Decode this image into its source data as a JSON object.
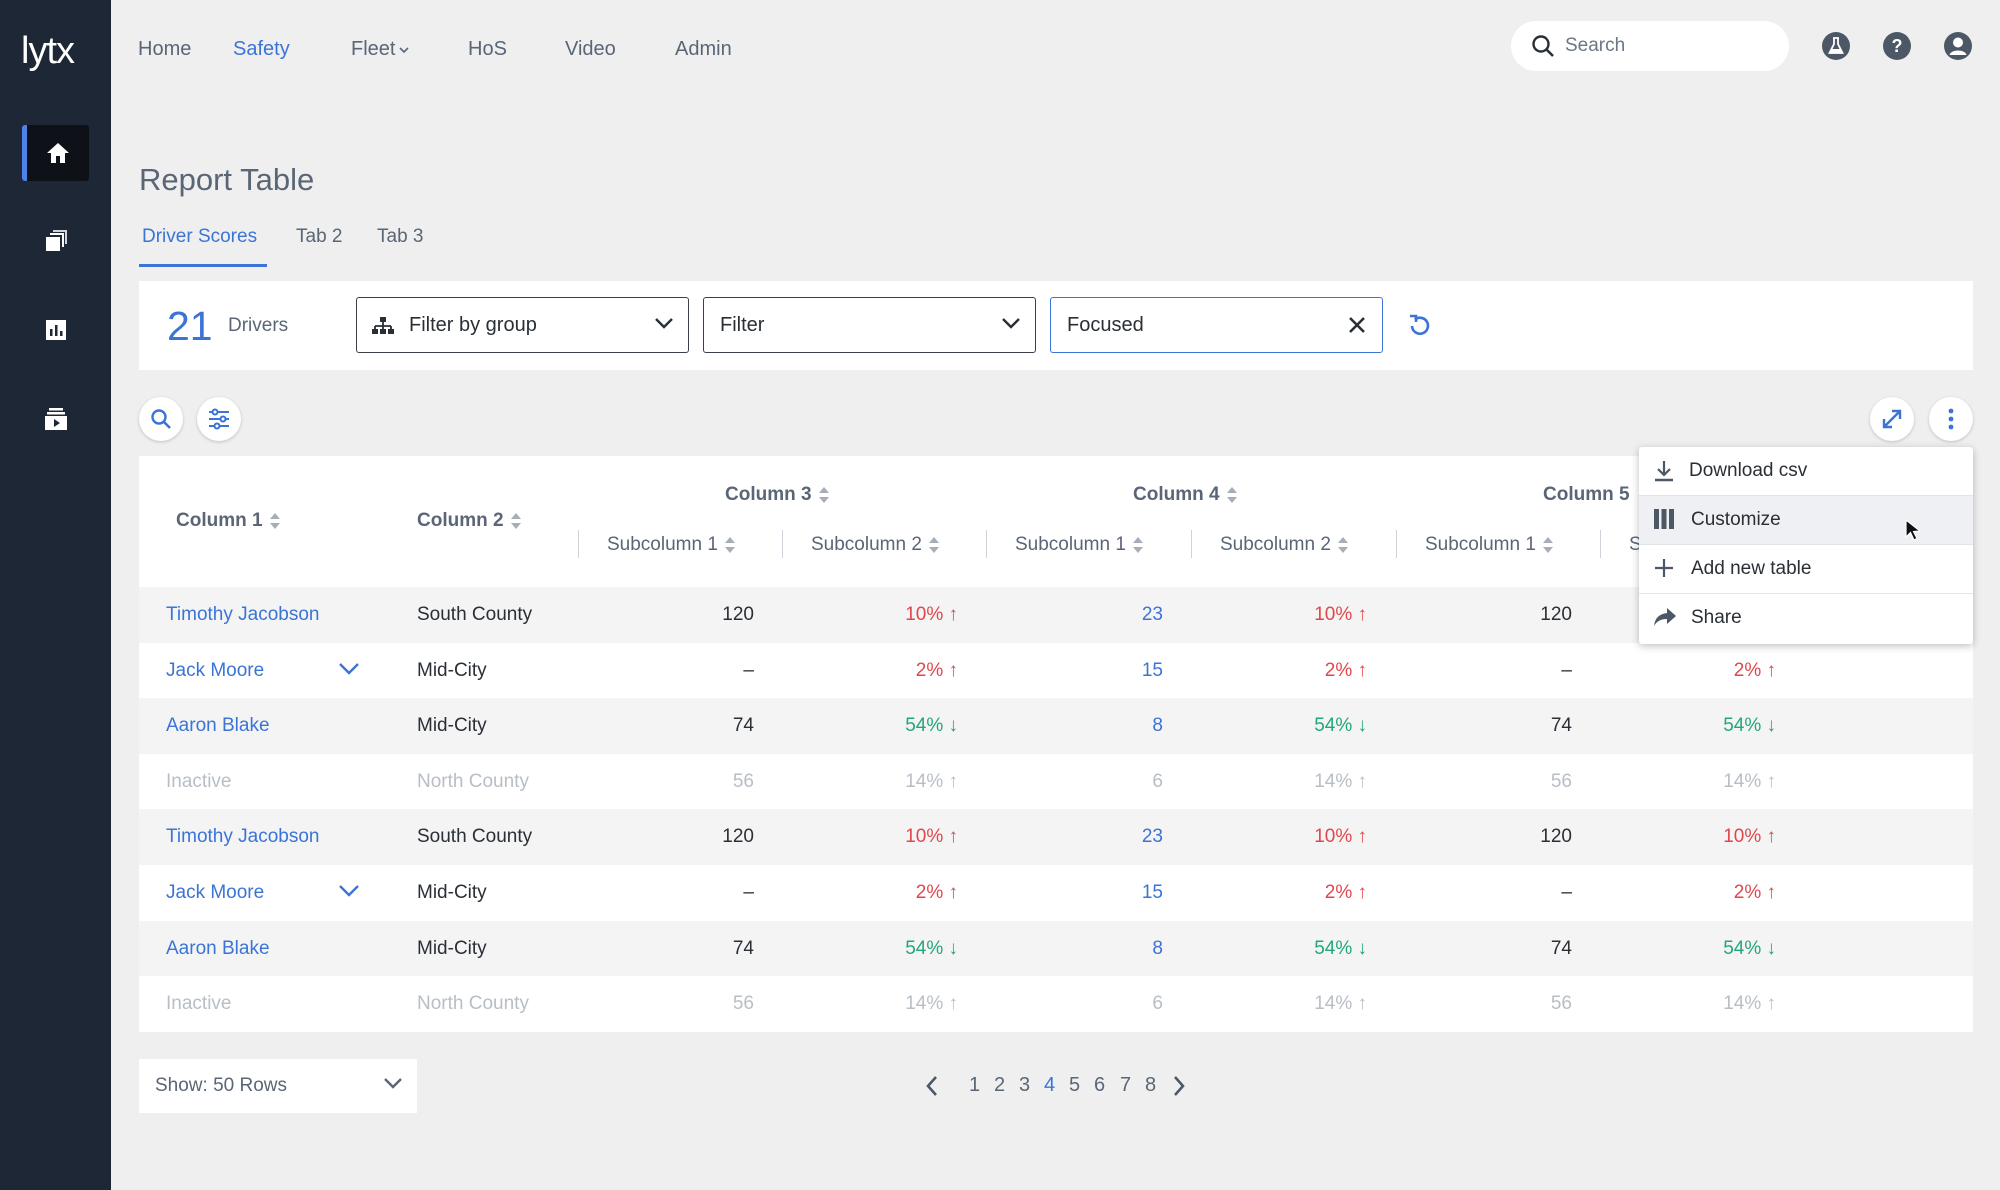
{
  "brand": {
    "logo_text": "lytx"
  },
  "rail": {
    "items": [
      {
        "icon": "home-icon",
        "active": true
      },
      {
        "icon": "copy-icon",
        "active": false
      },
      {
        "icon": "bar-chart-icon",
        "active": false
      },
      {
        "icon": "video-stack-icon",
        "active": false
      }
    ]
  },
  "nav": {
    "items": [
      "Home",
      "Safety",
      "Fleet",
      "HoS",
      "Video",
      "Admin"
    ],
    "active": "Safety"
  },
  "search": {
    "placeholder": "Search"
  },
  "header_icons": [
    "flask-icon",
    "help-icon",
    "user-icon"
  ],
  "page": {
    "title": "Report Table",
    "tabs": [
      "Driver Scores",
      "Tab 2",
      "Tab 3"
    ],
    "active_tab": "Driver Scores"
  },
  "filters": {
    "count": "21",
    "count_label": "Drivers",
    "group_filter": "Filter by group",
    "filter": "Filter",
    "chip": "Focused"
  },
  "table": {
    "columns": [
      "Column 1",
      "Column 2",
      "Column 3",
      "Column 4",
      "Column 5"
    ],
    "subcolumns": [
      "Subcolumn 1",
      "Subcolumn 2",
      "Subcolumn 1",
      "Subcolumn 2",
      "Subcolumn 1",
      "S"
    ],
    "rows": [
      {
        "name": "Timothy Jacobson",
        "region": "South County",
        "c3s1": "120",
        "c3s2": "10% ↑",
        "c4s1": "23",
        "c4s2": "10% ↑",
        "c5s1": "120",
        "c5s2": "",
        "state": "up"
      },
      {
        "name": "Jack Moore",
        "region": "Mid-City",
        "c3s1": "–",
        "c3s2": "2% ↑",
        "c4s1": "15",
        "c4s2": "2% ↑",
        "c5s1": "–",
        "c5s2": "2% ↑",
        "state": "up",
        "expandable": true
      },
      {
        "name": "Aaron Blake",
        "region": "Mid-City",
        "c3s1": "74",
        "c3s2": "54% ↓",
        "c4s1": "8",
        "c4s2": "54% ↓",
        "c5s1": "74",
        "c5s2": "54% ↓",
        "state": "down"
      },
      {
        "name": "Inactive",
        "region": "North County",
        "c3s1": "56",
        "c3s2": "14% ↑",
        "c4s1": "6",
        "c4s2": "14% ↑",
        "c5s1": "56",
        "c5s2": "14% ↑",
        "state": "inactive"
      },
      {
        "name": "Timothy Jacobson",
        "region": "South County",
        "c3s1": "120",
        "c3s2": "10% ↑",
        "c4s1": "23",
        "c4s2": "10% ↑",
        "c5s1": "120",
        "c5s2": "10% ↑",
        "state": "up"
      },
      {
        "name": "Jack Moore",
        "region": "Mid-City",
        "c3s1": "–",
        "c3s2": "2% ↑",
        "c4s1": "15",
        "c4s2": "2% ↑",
        "c5s1": "–",
        "c5s2": "2% ↑",
        "state": "up",
        "expandable": true
      },
      {
        "name": "Aaron Blake",
        "region": "Mid-City",
        "c3s1": "74",
        "c3s2": "54% ↓",
        "c4s1": "8",
        "c4s2": "54% ↓",
        "c5s1": "74",
        "c5s2": "54% ↓",
        "state": "down"
      },
      {
        "name": "Inactive",
        "region": "North County",
        "c3s1": "56",
        "c3s2": "14% ↑",
        "c4s1": "6",
        "c4s2": "14% ↑",
        "c5s1": "56",
        "c5s2": "14% ↑",
        "state": "inactive"
      }
    ]
  },
  "menu": {
    "items": [
      {
        "label": "Download csv",
        "icon": "download-icon"
      },
      {
        "label": "Customize",
        "icon": "columns-icon",
        "hover": true
      },
      {
        "label": "Add new table",
        "icon": "plus-icon"
      },
      {
        "label": "Share",
        "icon": "share-icon"
      }
    ]
  },
  "pagination": {
    "rows_label": "Show: 50 Rows",
    "pages": [
      "1",
      "2",
      "3",
      "4",
      "5",
      "6",
      "7",
      "8"
    ],
    "current": "4"
  },
  "colors": {
    "accent": "#3b74d6",
    "up": "#e0474c",
    "down": "#21a779",
    "rail": "#1e2735"
  }
}
